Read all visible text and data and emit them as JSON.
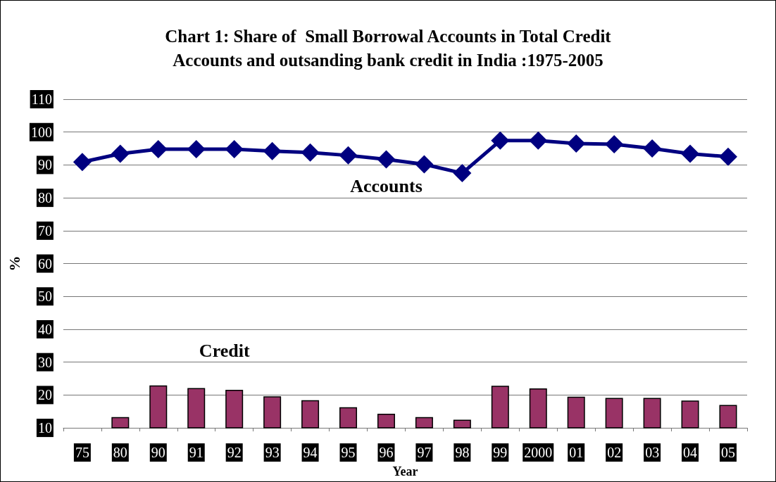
{
  "chart_data": {
    "type": "bar",
    "title": "Chart 1: Share of  Small Borrowal Accounts in Total Credit\nAccounts and outsanding bank credit in India :1975-2005",
    "xlabel": "Year",
    "ylabel": "%",
    "categories": [
      "75",
      "80",
      "90",
      "91",
      "92",
      "93",
      "94",
      "95",
      "96",
      "97",
      "98",
      "99",
      "2000",
      "01",
      "02",
      "03",
      "04",
      "05"
    ],
    "series": [
      {
        "name": "Accounts",
        "type": "line",
        "color": "#000080",
        "values": [
          90.9,
          93.4,
          94.8,
          94.8,
          94.8,
          94.2,
          93.8,
          92.9,
          91.7,
          90.2,
          87.5,
          97.4,
          97.4,
          96.5,
          96.3,
          95.0,
          93.4,
          92.5
        ]
      },
      {
        "name": "Credit",
        "color": "#993366",
        "values": [
          null,
          13.3,
          22.9,
          22.1,
          21.6,
          19.6,
          18.4,
          16.3,
          14.3,
          13.3,
          12.5,
          22.8,
          22.0,
          19.5,
          19.1,
          19.1,
          18.3,
          17.0
        ]
      }
    ],
    "ylim": [
      10,
      110
    ],
    "yticks": [
      10,
      20,
      30,
      40,
      50,
      60,
      70,
      80,
      90,
      100,
      110
    ],
    "grid": "y",
    "legend": false,
    "marker": "diamond",
    "line_style": "solid"
  }
}
